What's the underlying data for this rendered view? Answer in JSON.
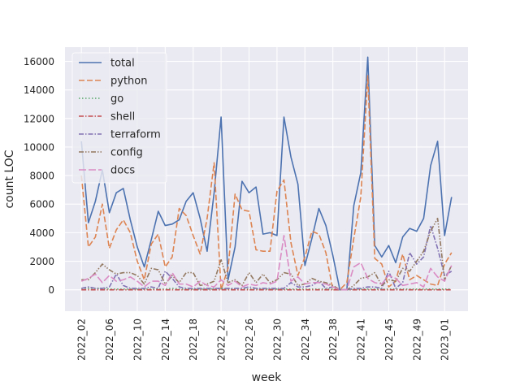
{
  "chart_data": {
    "type": "line",
    "title": "",
    "xlabel": "week",
    "ylabel": "count LOC",
    "ylim": [
      -1500,
      17000
    ],
    "yticks": [
      0,
      2000,
      4000,
      6000,
      8000,
      10000,
      12000,
      14000,
      16000
    ],
    "xtick_labels": [
      "2022_02",
      "2022_06",
      "2022_10",
      "2022_14",
      "2022_18",
      "2022_22",
      "2022_26",
      "2022_30",
      "2022_34",
      "2022_38",
      "2022_41",
      "2022_45",
      "2022_49",
      "2023_01"
    ],
    "xtick_indices": [
      0,
      4,
      8,
      12,
      16,
      20,
      24,
      28,
      32,
      36,
      40,
      44,
      48,
      52
    ],
    "grid": true,
    "background": "#eaeaf2",
    "legend_position": "top-left",
    "series": [
      {
        "name": "total",
        "color": "#4c72b0",
        "dash": "solid",
        "width": 1.6,
        "values": [
          10400,
          4700,
          6200,
          8400,
          5400,
          6800,
          7100,
          4900,
          3000,
          1600,
          3500,
          5500,
          4500,
          4600,
          4900,
          6200,
          6800,
          5000,
          2700,
          6800,
          12100,
          700,
          3000,
          7600,
          6800,
          7200,
          3900,
          4000,
          3800,
          12100,
          9300,
          7400,
          1700,
          3600,
          5700,
          4500,
          2400,
          0,
          0,
          5900,
          8200,
          16300,
          3100,
          2300,
          3100,
          1900,
          3700,
          4300,
          4100,
          5000,
          8700,
          10400,
          3800,
          6500
        ]
      },
      {
        "name": "python",
        "color": "#dd8452",
        "dash": "7,3",
        "width": 1.6,
        "values": [
          8000,
          3000,
          3700,
          6000,
          2900,
          4200,
          4900,
          4000,
          2000,
          700,
          3200,
          3900,
          1600,
          2300,
          5700,
          5200,
          3800,
          2500,
          5000,
          8900,
          0,
          1500,
          6700,
          5600,
          5500,
          2800,
          2700,
          2700,
          6900,
          7700,
          3300,
          1000,
          2300,
          4100,
          3900,
          2600,
          0,
          0,
          500,
          3600,
          6500,
          15000,
          2200,
          1800,
          200,
          600,
          2500,
          700,
          1000,
          700,
          400,
          300,
          1800,
          2600
        ]
      },
      {
        "name": "go",
        "color": "#55a868",
        "dash": "1.5,2.5",
        "width": 1.6,
        "values": [
          100,
          100,
          100,
          100,
          50,
          50,
          50,
          50,
          50,
          50,
          50,
          50,
          50,
          100,
          50,
          50,
          50,
          50,
          50,
          50,
          100,
          50,
          50,
          50,
          50,
          50,
          50,
          50,
          50,
          50,
          50,
          50,
          50,
          50,
          50,
          50,
          50,
          0,
          0,
          50,
          50,
          50,
          50,
          50,
          50,
          50,
          50,
          50,
          50,
          50,
          50,
          50,
          50,
          50
        ]
      },
      {
        "name": "shell",
        "color": "#c44e52",
        "dash": "6,2,1.5,2",
        "width": 1.6,
        "values": [
          0,
          0,
          0,
          0,
          0,
          0,
          0,
          0,
          0,
          0,
          0,
          0,
          0,
          0,
          0,
          0,
          0,
          0,
          0,
          0,
          0,
          0,
          0,
          0,
          0,
          0,
          0,
          0,
          0,
          0,
          0,
          0,
          0,
          0,
          0,
          0,
          0,
          0,
          0,
          0,
          0,
          0,
          0,
          0,
          0,
          0,
          0,
          0,
          0,
          0,
          0,
          0,
          0,
          0
        ]
      },
      {
        "name": "terraform",
        "color": "#8172b3",
        "dash": "6,2,1.5,2",
        "width": 1.6,
        "values": [
          100,
          200,
          100,
          100,
          200,
          1100,
          300,
          100,
          100,
          100,
          200,
          100,
          1300,
          800,
          200,
          100,
          100,
          100,
          100,
          100,
          100,
          100,
          100,
          100,
          200,
          100,
          100,
          100,
          100,
          100,
          500,
          200,
          200,
          300,
          600,
          100,
          200,
          0,
          0,
          100,
          100,
          200,
          200,
          100,
          1300,
          100,
          500,
          2600,
          1800,
          2300,
          4500,
          2900,
          1000,
          1300
        ]
      },
      {
        "name": "config",
        "color": "#937860",
        "dash": "6,2,1.5,2,1.5,2",
        "width": 1.6,
        "values": [
          700,
          700,
          1200,
          1800,
          1400,
          1100,
          1200,
          1200,
          1000,
          400,
          1500,
          1400,
          400,
          1000,
          500,
          1200,
          1200,
          300,
          400,
          600,
          2100,
          500,
          700,
          300,
          1200,
          500,
          1100,
          500,
          700,
          1200,
          1100,
          300,
          400,
          800,
          600,
          500,
          300,
          0,
          0,
          300,
          800,
          900,
          1200,
          300,
          700,
          600,
          1500,
          1300,
          2000,
          2700,
          4100,
          5000,
          700,
          1700
        ]
      },
      {
        "name": "docs",
        "color": "#da8bc3",
        "dash": "9,3",
        "width": 1.6,
        "values": [
          600,
          800,
          1100,
          500,
          1000,
          600,
          700,
          900,
          600,
          200,
          600,
          600,
          300,
          1200,
          400,
          400,
          200,
          600,
          300,
          200,
          700,
          300,
          600,
          200,
          400,
          300,
          500,
          400,
          600,
          3800,
          600,
          900,
          400,
          500,
          500,
          400,
          200,
          0,
          0,
          1600,
          1900,
          800,
          500,
          400,
          1000,
          800,
          300,
          400,
          500,
          200,
          1500,
          900,
          600,
          1700
        ]
      }
    ]
  }
}
